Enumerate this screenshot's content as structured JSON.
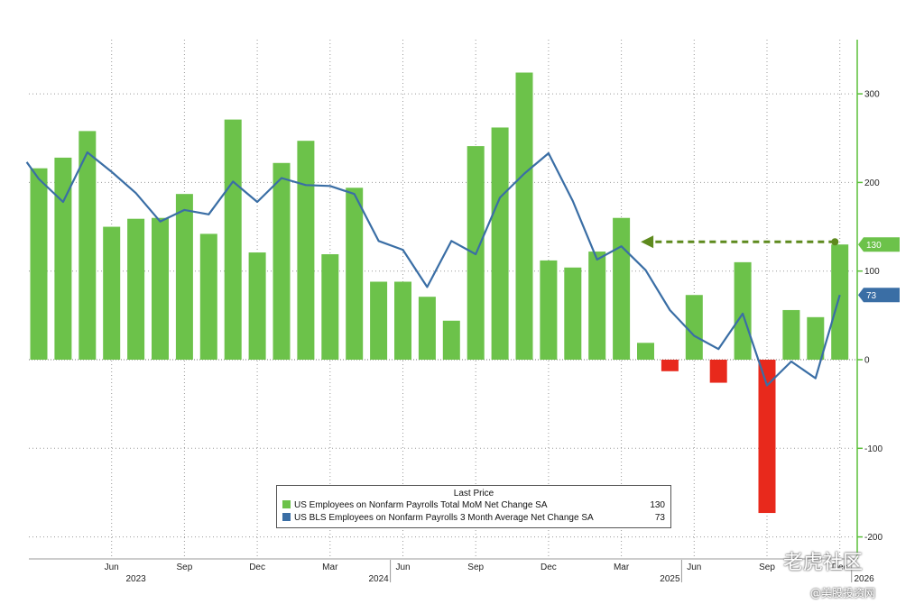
{
  "chart_data": {
    "type": "bar",
    "y_ticks": [
      300,
      200,
      100,
      0,
      -100,
      -200
    ],
    "ylim": [
      -220,
      360
    ],
    "month_labels": [
      {
        "month_index": 3,
        "label": "Jun"
      },
      {
        "month_index": 6,
        "label": "Sep"
      },
      {
        "month_index": 9,
        "label": "Dec"
      },
      {
        "month_index": 12,
        "label": "Mar"
      },
      {
        "month_index": 15,
        "label": "Jun"
      },
      {
        "month_index": 18,
        "label": "Sep"
      },
      {
        "month_index": 21,
        "label": "Dec"
      },
      {
        "month_index": 24,
        "label": "Mar"
      },
      {
        "month_index": 27,
        "label": "Jun"
      },
      {
        "month_index": 30,
        "label": "Sep"
      },
      {
        "month_index": 33,
        "label": "Dec"
      }
    ],
    "years": [
      {
        "month_index": 4,
        "label": "2023"
      },
      {
        "month_index": 14,
        "label": "2024"
      },
      {
        "month_index": 26,
        "label": "2025"
      },
      {
        "month_index": 34,
        "label": "2026"
      }
    ],
    "bar_series": {
      "name": "US Employees on Nonfarm Payrolls Total MoM Net Change SA",
      "values": [
        216,
        228,
        258,
        150,
        159,
        160,
        187,
        142,
        271,
        121,
        222,
        247,
        119,
        194,
        88,
        88,
        71,
        44,
        241,
        262,
        324,
        112,
        104,
        122,
        160,
        19,
        -13,
        73,
        -26,
        110,
        -173,
        56,
        48,
        130
      ]
    },
    "line_series": {
      "name": "US BLS Employees on Nonfarm Payrolls 3 Month Average Net Change SA",
      "points": [
        {
          "x": -0.5,
          "y": 223
        },
        {
          "x": 0,
          "y": 204
        },
        {
          "x": 1,
          "y": 178
        },
        {
          "x": 2,
          "y": 234
        },
        {
          "x": 3,
          "y": 212
        },
        {
          "x": 4,
          "y": 188
        },
        {
          "x": 5,
          "y": 156
        },
        {
          "x": 6,
          "y": 169
        },
        {
          "x": 7,
          "y": 164
        },
        {
          "x": 8,
          "y": 201
        },
        {
          "x": 9,
          "y": 178
        },
        {
          "x": 10,
          "y": 205
        },
        {
          "x": 11,
          "y": 197
        },
        {
          "x": 12,
          "y": 196
        },
        {
          "x": 13,
          "y": 187
        },
        {
          "x": 14,
          "y": 134
        },
        {
          "x": 15,
          "y": 124
        },
        {
          "x": 16,
          "y": 82
        },
        {
          "x": 17,
          "y": 134
        },
        {
          "x": 18,
          "y": 119
        },
        {
          "x": 19,
          "y": 183
        },
        {
          "x": 20,
          "y": 210
        },
        {
          "x": 21,
          "y": 233
        },
        {
          "x": 22,
          "y": 179
        },
        {
          "x": 23,
          "y": 113
        },
        {
          "x": 24,
          "y": 128
        },
        {
          "x": 25,
          "y": 101
        },
        {
          "x": 26,
          "y": 56
        },
        {
          "x": 27,
          "y": 27
        },
        {
          "x": 28,
          "y": 12
        },
        {
          "x": 29,
          "y": 52
        },
        {
          "x": 30,
          "y": -29
        },
        {
          "x": 31,
          "y": -2
        },
        {
          "x": 32,
          "y": -21
        },
        {
          "x": 33,
          "y": 73
        }
      ]
    },
    "arrow": {
      "from_month_index": 32.8,
      "to_month_index": 24.8,
      "value": 133
    },
    "last_values": {
      "bars": "130",
      "line": "73"
    },
    "colors": {
      "positive": "#6cc24a",
      "negative": "#e8291c",
      "line": "#3a6ea5",
      "arrow": "#5e8a1e",
      "axis": "#5bbf3a"
    }
  },
  "legend": {
    "title": "Last Price",
    "bar_label": "US Employees on Nonfarm Payrolls Total MoM Net Change SA",
    "bar_value": "130",
    "line_label": "US BLS Employees on Nonfarm Payrolls 3 Month Average Net Change SA",
    "line_value": "73"
  },
  "watermark": {
    "logo": "老虎社区",
    "handle": "@美股投资网"
  }
}
